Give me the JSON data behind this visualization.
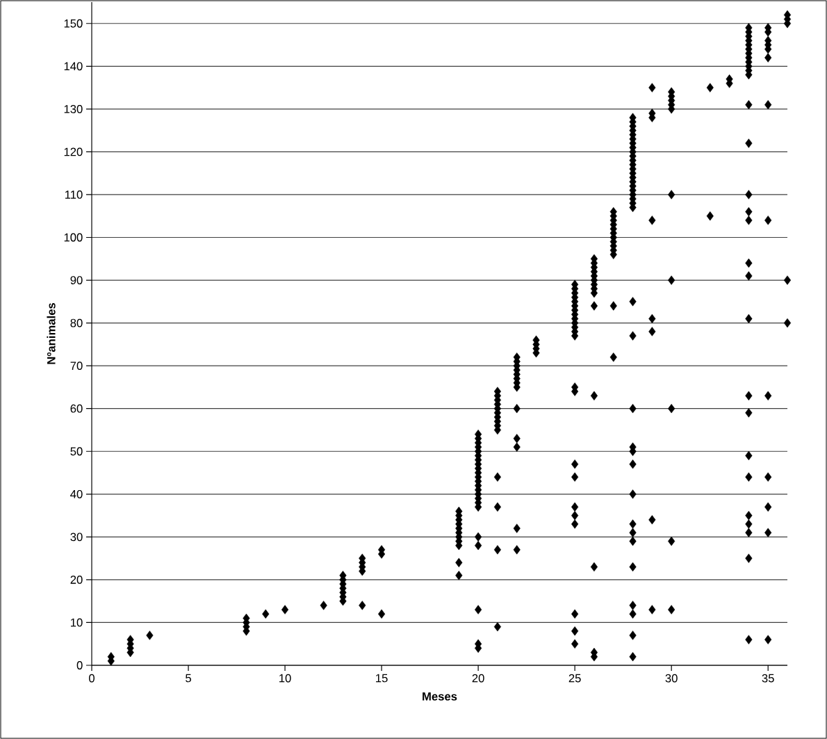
{
  "chart_data": {
    "type": "scatter",
    "xlabel": "Meses",
    "ylabel": "Nºanimales",
    "color": "#000000",
    "marker": "diamond",
    "grid": "y",
    "xlim": [
      0,
      36
    ],
    "ylim": [
      0,
      155
    ],
    "xticks": [
      0,
      5,
      10,
      15,
      20,
      25,
      30,
      35
    ],
    "yticks": [
      0,
      10,
      20,
      30,
      40,
      50,
      60,
      70,
      80,
      90,
      100,
      110,
      120,
      130,
      140,
      150
    ],
    "x": [
      1,
      1,
      2,
      2,
      2,
      2,
      3,
      8,
      8,
      8,
      8,
      9,
      10,
      12,
      13,
      13,
      13,
      13,
      13,
      13,
      13,
      14,
      14,
      14,
      14,
      14,
      15,
      15,
      15,
      19,
      19,
      19,
      19,
      19,
      19,
      19,
      19,
      19,
      19,
      19,
      20,
      20,
      20,
      20,
      20,
      20,
      20,
      20,
      20,
      20,
      20,
      20,
      20,
      20,
      20,
      20,
      20,
      20,
      20,
      20,
      20,
      20,
      20,
      21,
      21,
      21,
      21,
      21,
      21,
      21,
      21,
      21,
      21,
      21,
      21,
      21,
      21,
      22,
      22,
      22,
      22,
      22,
      22,
      22,
      22,
      22,
      22,
      22,
      22,
      22,
      23,
      23,
      23,
      23,
      25,
      25,
      25,
      25,
      25,
      25,
      25,
      25,
      25,
      25,
      25,
      25,
      25,
      25,
      25,
      25,
      25,
      25,
      25,
      25,
      25,
      25,
      25,
      26,
      26,
      26,
      26,
      26,
      26,
      26,
      26,
      26,
      26,
      26,
      26,
      26,
      26,
      27,
      27,
      27,
      27,
      27,
      27,
      27,
      27,
      27,
      27,
      27,
      27,
      27,
      28,
      28,
      28,
      28,
      28,
      28,
      28,
      28,
      28,
      28,
      28,
      28,
      28,
      28,
      28,
      28,
      28,
      28,
      28,
      28,
      28,
      28,
      28,
      28,
      28,
      28,
      28,
      28,
      28,
      28,
      28,
      28,
      28,
      28,
      28,
      28,
      28,
      29,
      29,
      29,
      29,
      29,
      29,
      29,
      29,
      30,
      30,
      30,
      30,
      30,
      30,
      30,
      30,
      30,
      30,
      32,
      32,
      33,
      33,
      34,
      34,
      34,
      34,
      34,
      34,
      34,
      34,
      34,
      34,
      34,
      34,
      34,
      34,
      34,
      34,
      34,
      34,
      34,
      34,
      34,
      34,
      34,
      34,
      34,
      34,
      34,
      34,
      34,
      35,
      35,
      35,
      35,
      35,
      35,
      35,
      35,
      35,
      35,
      35,
      35,
      35,
      36,
      36,
      36,
      36,
      36
    ],
    "values": [
      1,
      2,
      3,
      4,
      5,
      6,
      7,
      8,
      9,
      10,
      11,
      12,
      13,
      14,
      15,
      16,
      17,
      18,
      19,
      20,
      21,
      14,
      22,
      23,
      24,
      25,
      12,
      26,
      27,
      21,
      24,
      28,
      29,
      30,
      31,
      32,
      33,
      34,
      35,
      36,
      4,
      5,
      13,
      28,
      30,
      37,
      38,
      39,
      40,
      41,
      42,
      43,
      44,
      45,
      46,
      47,
      48,
      49,
      50,
      51,
      52,
      53,
      54,
      9,
      27,
      37,
      44,
      55,
      56,
      57,
      58,
      59,
      60,
      61,
      62,
      63,
      64,
      27,
      32,
      51,
      53,
      60,
      65,
      66,
      67,
      68,
      69,
      70,
      71,
      72,
      73,
      74,
      75,
      76,
      5,
      8,
      12,
      33,
      35,
      37,
      44,
      47,
      64,
      65,
      77,
      78,
      79,
      80,
      81,
      82,
      83,
      84,
      85,
      86,
      87,
      88,
      89,
      2,
      3,
      23,
      63,
      84,
      87,
      88,
      89,
      90,
      91,
      92,
      93,
      94,
      95,
      72,
      84,
      96,
      97,
      98,
      99,
      100,
      101,
      102,
      103,
      104,
      105,
      106,
      2,
      7,
      12,
      14,
      23,
      29,
      31,
      33,
      40,
      47,
      50,
      51,
      60,
      77,
      85,
      107,
      108,
      109,
      110,
      111,
      112,
      113,
      114,
      115,
      116,
      117,
      118,
      119,
      120,
      121,
      122,
      123,
      124,
      125,
      126,
      127,
      128,
      13,
      34,
      78,
      81,
      104,
      128,
      129,
      135,
      13,
      29,
      60,
      90,
      110,
      130,
      131,
      132,
      133,
      134,
      105,
      135,
      136,
      137,
      6,
      25,
      31,
      33,
      35,
      44,
      49,
      59,
      63,
      81,
      91,
      94,
      104,
      106,
      110,
      122,
      131,
      138,
      139,
      140,
      141,
      142,
      143,
      144,
      145,
      146,
      147,
      148,
      149,
      6,
      31,
      37,
      44,
      63,
      104,
      131,
      142,
      144,
      145,
      146,
      148,
      149,
      80,
      90,
      150,
      151,
      152
    ]
  }
}
